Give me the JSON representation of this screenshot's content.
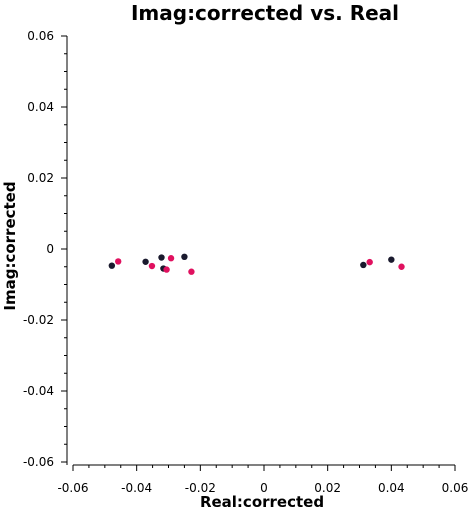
{
  "chart_data": {
    "type": "scatter",
    "title": "Imag:corrected vs. Real",
    "xlabel": "Real:corrected",
    "ylabel": "Imag:corrected",
    "xlim": [
      -0.06,
      0.06
    ],
    "ylim": [
      -0.06,
      0.06
    ],
    "xticks": [
      -0.06,
      -0.04,
      -0.02,
      0,
      0.02,
      0.04,
      0.06
    ],
    "xtick_labels": [
      "-0.06",
      "-0.04",
      "-0.02",
      "0",
      "0.02",
      "0.04",
      "0.06"
    ],
    "yticks": [
      -0.06,
      -0.04,
      -0.02,
      0,
      0.02,
      0.04,
      0.06
    ],
    "ytick_labels": [
      "-0.06",
      "-0.04",
      "-0.02",
      "0",
      "0.02",
      "0.04",
      "0.06"
    ],
    "grid": false,
    "series": [
      {
        "color": "#1a1a2e",
        "points": [
          [
            -0.0478,
            -0.0047
          ],
          [
            -0.0372,
            -0.0036
          ],
          [
            -0.0322,
            -0.0024
          ],
          [
            -0.0316,
            -0.0055
          ],
          [
            -0.025,
            -0.0022
          ],
          [
            0.0312,
            -0.0045
          ],
          [
            0.04,
            -0.003
          ]
        ]
      },
      {
        "color": "#e0115f",
        "points": [
          [
            -0.0458,
            -0.0035
          ],
          [
            -0.0352,
            -0.0048
          ],
          [
            -0.0306,
            -0.0058
          ],
          [
            -0.0292,
            -0.0026
          ],
          [
            -0.0228,
            -0.0064
          ],
          [
            0.0332,
            -0.0037
          ],
          [
            0.0432,
            -0.005
          ]
        ]
      }
    ]
  }
}
